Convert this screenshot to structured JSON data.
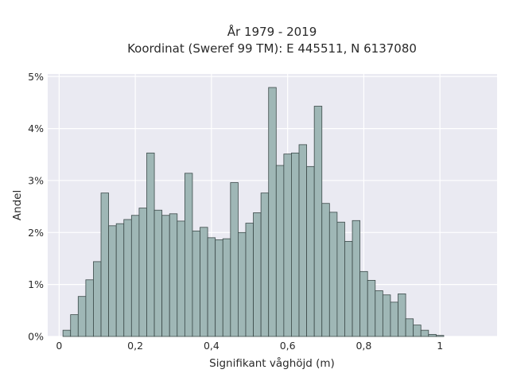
{
  "chart_data": {
    "type": "bar",
    "title_lines": [
      "År 1979 - 2019",
      "Koordinat (Sweref 99 TM): E 445511, N 6137080"
    ],
    "xlabel": "Signifikant våghöjd (m)",
    "ylabel": "Andel",
    "xlim": [
      -0.03,
      1.15
    ],
    "ylim": [
      0,
      5.05
    ],
    "x_ticks": [
      {
        "value": 0,
        "label": "0"
      },
      {
        "value": 0.2,
        "label": "0,2"
      },
      {
        "value": 0.4,
        "label": "0,4"
      },
      {
        "value": 0.6,
        "label": "0,6"
      },
      {
        "value": 0.8,
        "label": "0,8"
      },
      {
        "value": 1.0,
        "label": "1"
      }
    ],
    "y_ticks": [
      {
        "value": 0,
        "label": "0%"
      },
      {
        "value": 1,
        "label": "1%"
      },
      {
        "value": 2,
        "label": "2%"
      },
      {
        "value": 3,
        "label": "3%"
      },
      {
        "value": 4,
        "label": "4%"
      },
      {
        "value": 5,
        "label": "5%"
      }
    ],
    "grid": true,
    "bin_width": 0.02,
    "bin_start": 0.01,
    "values": [
      0.12,
      0.42,
      0.77,
      1.09,
      1.44,
      2.76,
      2.13,
      2.17,
      2.25,
      2.33,
      2.47,
      3.53,
      2.43,
      2.33,
      2.36,
      2.22,
      3.14,
      2.03,
      2.1,
      1.9,
      1.86,
      1.88,
      2.96,
      2.0,
      2.18,
      2.38,
      2.76,
      4.79,
      3.29,
      3.51,
      3.53,
      3.69,
      3.27,
      4.43,
      2.56,
      2.39,
      2.2,
      1.83,
      2.23,
      1.25,
      1.08,
      0.88,
      0.8,
      0.66,
      0.82,
      0.34,
      0.22,
      0.12,
      0.04,
      0.02
    ],
    "colors": {
      "bar_fill": "#9fb7b6",
      "bar_edge": "#3c4a49",
      "plot_bg": "#eaeaf2",
      "grid": "#ffffff"
    }
  }
}
